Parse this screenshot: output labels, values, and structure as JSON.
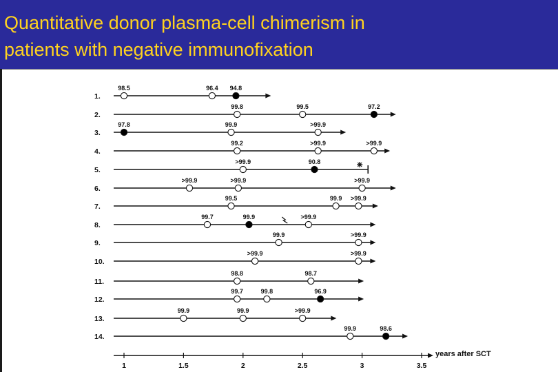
{
  "header": {
    "title_line1": "Quantitative donor plasma-cell chimerism in",
    "title_line2": "patients with negative immunofixation",
    "background_color": "#2a2a9a",
    "text_color": "#ffd21f"
  },
  "chart_data": {
    "type": "scatter",
    "title": "Quantitative donor plasma-cell chimerism in patients with negative immunofixation",
    "xlabel": "years after SCT",
    "ylabel": "",
    "xlim": [
      1,
      3.5
    ],
    "x_ticks": [
      "1",
      "1.5",
      "2",
      "2.5",
      "3",
      "3.5"
    ],
    "grid": false,
    "legend": "none",
    "point_styles": {
      "open": "open circle",
      "filled": "filled circle"
    },
    "patients": [
      {
        "label": "1.",
        "end": 2.2,
        "ends_with": "arrow",
        "points": [
          {
            "x": 1.0,
            "value": "98.5",
            "filled": false
          },
          {
            "x": 1.74,
            "value": "96.4",
            "filled": false
          },
          {
            "x": 1.94,
            "value": "94.8",
            "filled": true
          }
        ]
      },
      {
        "label": "2.",
        "end": 3.25,
        "ends_with": "arrow",
        "points": [
          {
            "x": 1.95,
            "value": "99.8",
            "filled": false
          },
          {
            "x": 2.5,
            "value": "99.5",
            "filled": false
          },
          {
            "x": 3.1,
            "value": "97.2",
            "filled": true
          }
        ]
      },
      {
        "label": "3.",
        "end": 2.83,
        "ends_with": "arrow",
        "points": [
          {
            "x": 1.0,
            "value": "97.8",
            "filled": true
          },
          {
            "x": 1.9,
            "value": "99.9",
            "filled": false
          },
          {
            "x": 2.63,
            "value": ">99.9",
            "filled": false
          }
        ]
      },
      {
        "label": "4.",
        "end": 3.2,
        "ends_with": "arrow",
        "points": [
          {
            "x": 1.95,
            "value": "99.2",
            "filled": false
          },
          {
            "x": 2.63,
            "value": ">99.9",
            "filled": false
          },
          {
            "x": 3.1,
            "value": ">99.9",
            "filled": false
          }
        ]
      },
      {
        "label": "5.",
        "end": 3.05,
        "ends_with": "death",
        "points": [
          {
            "x": 2.0,
            "value": ">99.9",
            "filled": false
          },
          {
            "x": 2.6,
            "value": "90.8",
            "filled": true
          }
        ]
      },
      {
        "label": "6.",
        "end": 3.25,
        "ends_with": "arrow",
        "points": [
          {
            "x": 1.55,
            "value": ">99.9",
            "filled": false
          },
          {
            "x": 1.96,
            "value": ">99.9",
            "filled": false
          },
          {
            "x": 3.0,
            "value": ">99.9",
            "filled": false
          }
        ]
      },
      {
        "label": "7.",
        "end": 3.1,
        "ends_with": "arrow",
        "points": [
          {
            "x": 1.9,
            "value": "99.5",
            "filled": false
          },
          {
            "x": 2.78,
            "value": "99.9",
            "filled": false
          },
          {
            "x": 2.97,
            "value": ">99.9",
            "filled": false
          }
        ]
      },
      {
        "label": "8.",
        "end": 3.08,
        "ends_with": "arrow",
        "points": [
          {
            "x": 1.7,
            "value": "99.7",
            "filled": false
          },
          {
            "x": 2.05,
            "value": "99.9",
            "filled": true
          },
          {
            "x": 2.55,
            "value": ">99.9",
            "filled": false
          }
        ]
      },
      {
        "label": "9.",
        "end": 3.08,
        "ends_with": "arrow",
        "points": [
          {
            "x": 2.3,
            "value": "99.9",
            "filled": false
          },
          {
            "x": 2.97,
            "value": ">99.9",
            "filled": false
          }
        ]
      },
      {
        "label": "10.",
        "end": 3.08,
        "ends_with": "arrow",
        "points": [
          {
            "x": 2.1,
            "value": ">99.9",
            "filled": false
          },
          {
            "x": 2.97,
            "value": ">99.9",
            "filled": false
          }
        ]
      },
      {
        "label": "11.",
        "end": 2.98,
        "ends_with": "arrow",
        "points": [
          {
            "x": 1.95,
            "value": "98.8",
            "filled": false
          },
          {
            "x": 2.57,
            "value": "98.7",
            "filled": false
          }
        ]
      },
      {
        "label": "12.",
        "end": 2.98,
        "ends_with": "arrow",
        "points": [
          {
            "x": 1.95,
            "value": "99.7",
            "filled": false
          },
          {
            "x": 2.2,
            "value": "99.8",
            "filled": false
          },
          {
            "x": 2.65,
            "value": "96.9",
            "filled": true
          }
        ]
      },
      {
        "label": "13.",
        "end": 2.75,
        "ends_with": "arrow",
        "points": [
          {
            "x": 1.5,
            "value": "99.9",
            "filled": false
          },
          {
            "x": 2.0,
            "value": "99.9",
            "filled": false
          },
          {
            "x": 2.5,
            "value": ">99.9",
            "filled": false
          }
        ]
      },
      {
        "label": "14.",
        "end": 3.35,
        "ends_with": "arrow",
        "points": [
          {
            "x": 2.9,
            "value": "99.9",
            "filled": false
          },
          {
            "x": 3.2,
            "value": "98.6",
            "filled": true
          }
        ]
      }
    ]
  }
}
